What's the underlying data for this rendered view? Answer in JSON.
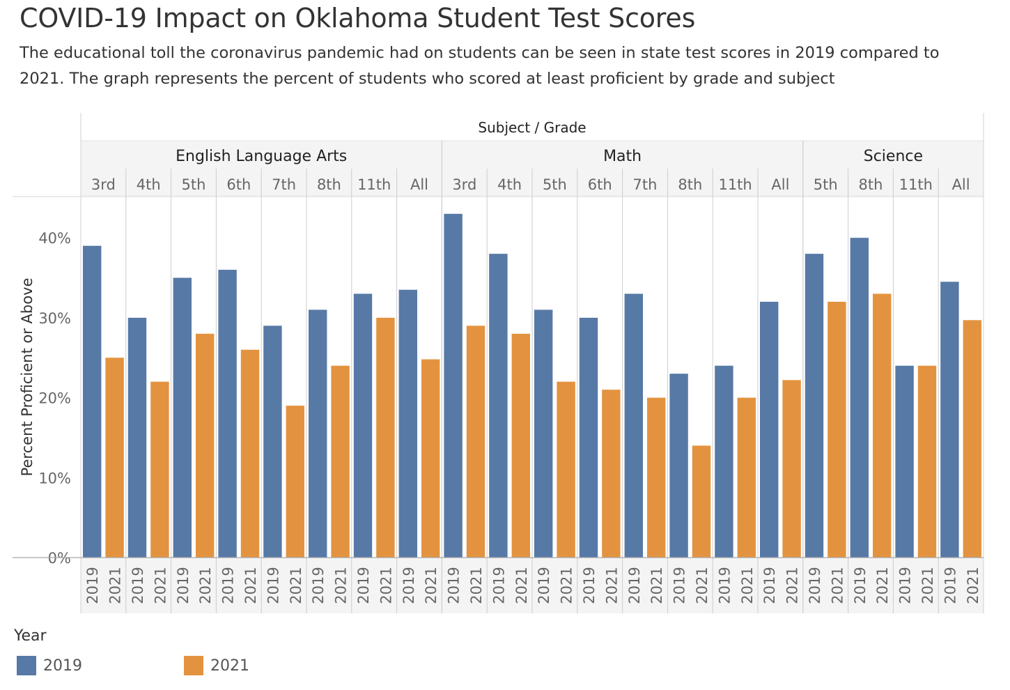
{
  "title": "COVID-19 Impact on Oklahoma Student Test Scores",
  "subtitle": "The educational toll the coronavirus pandemic had on students can be seen in state test scores in 2019 compared to 2021. The graph represents the percent of students who scored at least proficient by grade and subject",
  "legend": {
    "title": "Year",
    "items": [
      {
        "label": "2019",
        "color": "#5779a6"
      },
      {
        "label": "2021",
        "color": "#e3933f"
      }
    ]
  },
  "chart_data": {
    "type": "bar",
    "header_title": "Subject / Grade",
    "ylabel": "Percent Proficient or Above",
    "ylim": [
      0,
      45
    ],
    "yticks": [
      "0%",
      "10%",
      "20%",
      "30%",
      "40%"
    ],
    "ytick_values": [
      0,
      10,
      20,
      30,
      40
    ],
    "grid": false,
    "series_names": [
      "2019",
      "2021"
    ],
    "groups": [
      {
        "subject": "English Language Arts",
        "grades": [
          {
            "grade": "3rd",
            "values": [
              39,
              25
            ]
          },
          {
            "grade": "4th",
            "values": [
              30,
              22
            ]
          },
          {
            "grade": "5th",
            "values": [
              35,
              28
            ]
          },
          {
            "grade": "6th",
            "values": [
              36,
              26
            ]
          },
          {
            "grade": "7th",
            "values": [
              29,
              19
            ]
          },
          {
            "grade": "8th",
            "values": [
              31,
              24
            ]
          },
          {
            "grade": "11th",
            "values": [
              33,
              30
            ]
          },
          {
            "grade": "All",
            "values": [
              33.5,
              24.8
            ]
          }
        ]
      },
      {
        "subject": "Math",
        "grades": [
          {
            "grade": "3rd",
            "values": [
              43,
              29
            ]
          },
          {
            "grade": "4th",
            "values": [
              38,
              28
            ]
          },
          {
            "grade": "5th",
            "values": [
              31,
              22
            ]
          },
          {
            "grade": "6th",
            "values": [
              30,
              21
            ]
          },
          {
            "grade": "7th",
            "values": [
              33,
              20
            ]
          },
          {
            "grade": "8th",
            "values": [
              23,
              14
            ]
          },
          {
            "grade": "11th",
            "values": [
              24,
              20
            ]
          },
          {
            "grade": "All",
            "values": [
              32,
              22.2
            ]
          }
        ]
      },
      {
        "subject": "Science",
        "grades": [
          {
            "grade": "5th",
            "values": [
              38,
              32
            ]
          },
          {
            "grade": "8th",
            "values": [
              40,
              33
            ]
          },
          {
            "grade": "11th",
            "values": [
              24,
              24
            ]
          },
          {
            "grade": "All",
            "values": [
              34.5,
              29.7
            ]
          }
        ]
      }
    ]
  }
}
